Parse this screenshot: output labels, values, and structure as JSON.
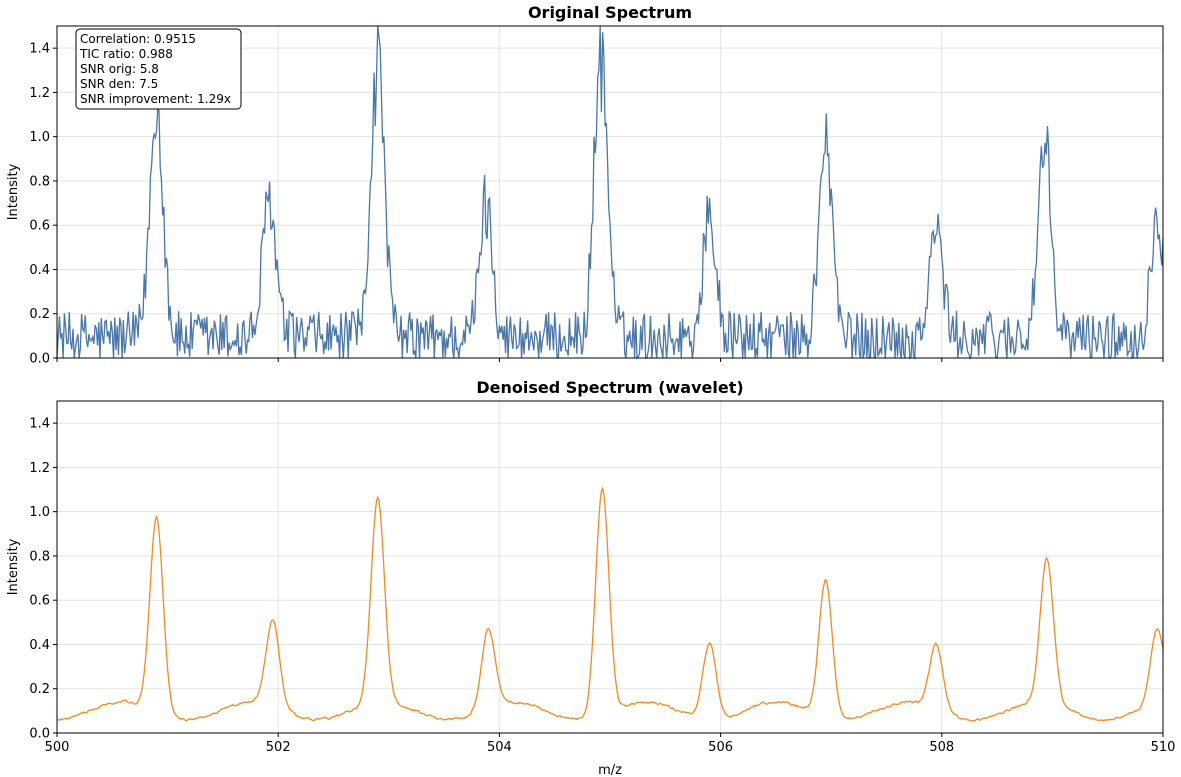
{
  "chart_data": [
    {
      "type": "line",
      "title": "Original Spectrum",
      "xlabel": "",
      "ylabel": "Intensity",
      "xlim": [
        500,
        510
      ],
      "ylim": [
        0,
        1.5
      ],
      "yticks": [
        "0.0",
        "0.2",
        "0.4",
        "0.6",
        "0.8",
        "1.0",
        "1.2",
        "1.4"
      ],
      "xticks": [],
      "grid": true,
      "series": [
        {
          "color": "#4a76a8",
          "noise_amplitude": 0.12,
          "peaks": [
            {
              "mz": 500.9,
              "height": 1.08
            },
            {
              "mz": 501.92,
              "height": 0.63
            },
            {
              "mz": 502.9,
              "height": 1.28
            },
            {
              "mz": 503.88,
              "height": 0.61
            },
            {
              "mz": 504.92,
              "height": 1.31
            },
            {
              "mz": 505.9,
              "height": 0.55
            },
            {
              "mz": 506.95,
              "height": 0.92
            },
            {
              "mz": 507.95,
              "height": 0.51
            },
            {
              "mz": 508.93,
              "height": 0.84
            },
            {
              "mz": 509.95,
              "height": 0.56
            }
          ]
        }
      ],
      "annotation": {
        "lines": [
          "Correlation: 0.9515",
          "TIC ratio: 0.988",
          "SNR orig: 5.8",
          "SNR den: 7.5",
          "SNR improvement: 1.29x"
        ]
      }
    },
    {
      "type": "line",
      "title": "Denoised Spectrum (wavelet)",
      "xlabel": "m/z",
      "ylabel": "Intensity",
      "xlim": [
        500,
        510
      ],
      "ylim": [
        0,
        1.5
      ],
      "yticks": [
        "0.0",
        "0.2",
        "0.4",
        "0.6",
        "0.8",
        "1.0",
        "1.2",
        "1.4"
      ],
      "xticks": [
        "500",
        "502",
        "504",
        "506",
        "508",
        "510"
      ],
      "grid": true,
      "series": [
        {
          "color": "#f08a24",
          "noise_amplitude": 0.015,
          "peaks": [
            {
              "mz": 500.9,
              "height": 0.88
            },
            {
              "mz": 501.95,
              "height": 0.39
            },
            {
              "mz": 502.9,
              "height": 0.93
            },
            {
              "mz": 503.9,
              "height": 0.36
            },
            {
              "mz": 504.93,
              "height": 1.02
            },
            {
              "mz": 505.9,
              "height": 0.35
            },
            {
              "mz": 506.95,
              "height": 0.62
            },
            {
              "mz": 507.95,
              "height": 0.29
            },
            {
              "mz": 508.95,
              "height": 0.65
            },
            {
              "mz": 509.95,
              "height": 0.34
            }
          ]
        }
      ]
    }
  ]
}
